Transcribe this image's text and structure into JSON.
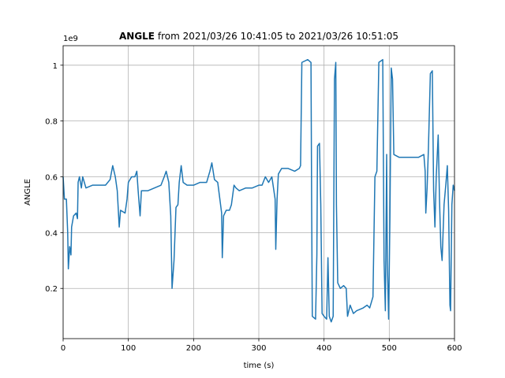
{
  "chart_data": {
    "type": "line",
    "title": {
      "bold": "ANGLE",
      "rest": "from 2021/03/26 10:41:05 to 2021/03/26 10:51:05"
    },
    "x_label": "time (s)",
    "y_label": "ANGLE",
    "y_offset_label": "1e9",
    "xlim": [
      0,
      600
    ],
    "xticks": [
      0,
      100,
      200,
      300,
      400,
      500,
      600
    ],
    "ylim": [
      0.02,
      1.07
    ],
    "yticks": [
      0.2,
      0.4,
      0.6,
      0.8,
      1.0
    ],
    "grid": true,
    "series": [
      {
        "color": "#1f77b4",
        "x": [
          0,
          2,
          5,
          7,
          8,
          10,
          12,
          13,
          16,
          20,
          22,
          23,
          25,
          28,
          30,
          35,
          45,
          55,
          65,
          72,
          76,
          80,
          83,
          86,
          88,
          95,
          98,
          100,
          105,
          110,
          113,
          115,
          118,
          120,
          130,
          140,
          150,
          155,
          158,
          162,
          165,
          167,
          170,
          173,
          176,
          178,
          181,
          184,
          190,
          200,
          210,
          220,
          225,
          228,
          232,
          237,
          243,
          244,
          246,
          250,
          255,
          258,
          262,
          265,
          270,
          280,
          290,
          300,
          305,
          310,
          315,
          320,
          325,
          326,
          328,
          330,
          335,
          345,
          355,
          362,
          364,
          366,
          375,
          380,
          381,
          382,
          387,
          389,
          390,
          393,
          395,
          397,
          400,
          404,
          406,
          408,
          411,
          414,
          416,
          418,
          419,
          421,
          425,
          430,
          434,
          436,
          440,
          445,
          450,
          460,
          466,
          470,
          475,
          478,
          481,
          484,
          490,
          492,
          494,
          496,
          497,
          499,
          501,
          503,
          505,
          507,
          515,
          530,
          545,
          553,
          555,
          556,
          558,
          560,
          563,
          566,
          568,
          570,
          572,
          575,
          577,
          579,
          581,
          584,
          587,
          589,
          591,
          593,
          594,
          596,
          598,
          600
        ],
        "values": [
          0.6,
          0.52,
          0.52,
          0.4,
          0.27,
          0.35,
          0.32,
          0.42,
          0.46,
          0.47,
          0.45,
          0.58,
          0.6,
          0.56,
          0.6,
          0.56,
          0.57,
          0.57,
          0.57,
          0.59,
          0.64,
          0.6,
          0.55,
          0.42,
          0.48,
          0.47,
          0.52,
          0.58,
          0.6,
          0.6,
          0.62,
          0.55,
          0.46,
          0.55,
          0.55,
          0.56,
          0.57,
          0.6,
          0.62,
          0.58,
          0.46,
          0.2,
          0.3,
          0.49,
          0.5,
          0.58,
          0.64,
          0.58,
          0.57,
          0.57,
          0.58,
          0.58,
          0.62,
          0.65,
          0.59,
          0.58,
          0.47,
          0.31,
          0.46,
          0.48,
          0.48,
          0.5,
          0.57,
          0.56,
          0.55,
          0.56,
          0.56,
          0.57,
          0.57,
          0.6,
          0.58,
          0.6,
          0.52,
          0.34,
          0.52,
          0.61,
          0.63,
          0.63,
          0.62,
          0.63,
          0.64,
          1.01,
          1.02,
          1.01,
          0.5,
          0.1,
          0.09,
          0.32,
          0.71,
          0.72,
          0.5,
          0.11,
          0.1,
          0.09,
          0.31,
          0.1,
          0.08,
          0.1,
          0.95,
          1.01,
          0.5,
          0.22,
          0.2,
          0.21,
          0.2,
          0.1,
          0.14,
          0.11,
          0.12,
          0.13,
          0.14,
          0.13,
          0.17,
          0.6,
          0.62,
          1.01,
          1.02,
          0.3,
          0.12,
          0.68,
          0.3,
          0.09,
          0.45,
          0.99,
          0.95,
          0.68,
          0.67,
          0.67,
          0.67,
          0.68,
          0.62,
          0.47,
          0.56,
          0.7,
          0.97,
          0.98,
          0.55,
          0.42,
          0.6,
          0.75,
          0.52,
          0.35,
          0.3,
          0.5,
          0.58,
          0.64,
          0.48,
          0.14,
          0.12,
          0.5,
          0.57,
          0.55
        ]
      }
    ]
  }
}
